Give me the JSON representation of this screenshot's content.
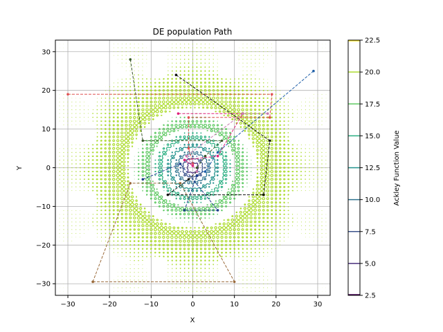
{
  "chart_data": {
    "type": "contour",
    "title": "DE population Path",
    "xlabel": "X",
    "ylabel": "Y",
    "xlim": [
      -33,
      33
    ],
    "ylim": [
      -33,
      33
    ],
    "xticks": [
      -30,
      -20,
      -10,
      0,
      10,
      20,
      30
    ],
    "yticks": [
      -30,
      -20,
      -10,
      0,
      10,
      20,
      30
    ],
    "grid": true,
    "contour": {
      "function": "Ackley",
      "levels": [
        5.0,
        7.5,
        10.0,
        12.5,
        15.0,
        17.5,
        20.0
      ],
      "level_colors": [
        "#472d7b",
        "#3b528b",
        "#2c728e",
        "#21918c",
        "#28ae80",
        "#5ec962",
        "#addc30"
      ]
    },
    "colorbar": {
      "label": "Ackley Function Value",
      "ticks": [
        "2.5",
        "5.0",
        "7.5",
        "10.0",
        "12.5",
        "15.0",
        "17.5",
        "20.0",
        "22.5"
      ],
      "range": [
        2.5,
        22.5
      ],
      "segment_colors": [
        "#440154",
        "#472d7b",
        "#3b528b",
        "#2c728e",
        "#21918c",
        "#28ae80",
        "#5ec962",
        "#addc30",
        "#fde725"
      ]
    },
    "paths": [
      {
        "color": "#e05050",
        "points": [
          [
            -30,
            19
          ],
          [
            19,
            19
          ],
          [
            18.5,
            13
          ],
          [
            -1,
            13
          ],
          [
            -1,
            5
          ],
          [
            0,
            1
          ]
        ]
      },
      {
        "color": "#1f5fa8",
        "points": [
          [
            29,
            25
          ],
          [
            6,
            4
          ],
          [
            3,
            -1
          ],
          [
            1,
            -1
          ]
        ]
      },
      {
        "color": "#3a5a2a",
        "points": [
          [
            -15,
            28
          ],
          [
            -12,
            7
          ],
          [
            7,
            7
          ],
          [
            3,
            3
          ],
          [
            1,
            0
          ]
        ]
      },
      {
        "color": "#111111",
        "points": [
          [
            -4,
            24
          ],
          [
            18.5,
            7
          ],
          [
            17,
            -7
          ],
          [
            -6,
            -7
          ],
          [
            -1,
            -3
          ],
          [
            1,
            -1
          ]
        ]
      },
      {
        "color": "#9a6a3a",
        "points": [
          [
            -24,
            -29.5
          ],
          [
            10,
            -29.5
          ],
          [
            -3,
            -4
          ],
          [
            -15,
            -4
          ],
          [
            -24,
            -29.5
          ]
        ]
      },
      {
        "color": "#1a3a8a",
        "points": [
          [
            -12,
            -3
          ],
          [
            -3,
            1
          ],
          [
            6,
            -11
          ],
          [
            -2,
            -11
          ],
          [
            1,
            -2
          ]
        ]
      },
      {
        "color": "#e0207a",
        "points": [
          [
            -3.5,
            14
          ],
          [
            12,
            14
          ],
          [
            6,
            3
          ],
          [
            -2,
            2
          ],
          [
            0,
            0.5
          ]
        ]
      },
      {
        "color": "#c87ab0",
        "points": [
          [
            18,
            14
          ],
          [
            12,
            14
          ],
          [
            -1.5,
            3
          ],
          [
            1,
            -1
          ]
        ]
      }
    ]
  }
}
